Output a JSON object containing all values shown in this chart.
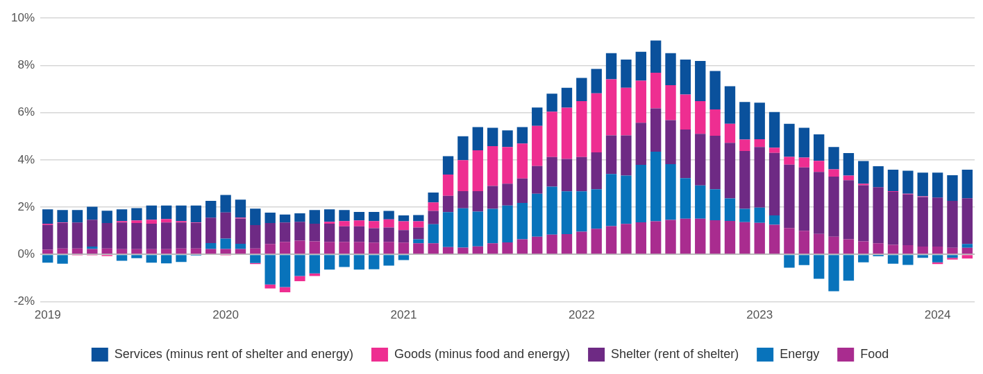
{
  "chart_data": {
    "type": "bar",
    "stacked": true,
    "legend": "bottom",
    "grid": "y",
    "categories": [
      "2019",
      null,
      null,
      null,
      null,
      null,
      null,
      null,
      null,
      null,
      null,
      null,
      "2020",
      null,
      null,
      null,
      null,
      null,
      null,
      null,
      null,
      null,
      null,
      null,
      "2021",
      null,
      null,
      null,
      null,
      null,
      null,
      null,
      null,
      null,
      null,
      null,
      "2022",
      null,
      null,
      null,
      null,
      null,
      null,
      null,
      null,
      null,
      null,
      null,
      "2023",
      null,
      null,
      null,
      null,
      null,
      null,
      null,
      null,
      null,
      null,
      null,
      "2024",
      null,
      null
    ],
    "ylim": [
      -2,
      10
    ],
    "yticks": [
      {
        "value": -2,
        "label": "-2%"
      },
      {
        "value": 0,
        "label": "0%"
      },
      {
        "value": 2,
        "label": "2%"
      },
      {
        "value": 4,
        "label": "4%"
      },
      {
        "value": 6,
        "label": "6%"
      },
      {
        "value": 8,
        "label": "8%"
      },
      {
        "value": 10,
        "label": "10%"
      }
    ],
    "series": [
      {
        "name": "Food",
        "color": "#a92c8f",
        "values": [
          0.2,
          0.25,
          0.25,
          0.23,
          0.25,
          0.22,
          0.22,
          0.22,
          0.22,
          0.25,
          0.25,
          0.23,
          0.23,
          0.23,
          0.25,
          0.44,
          0.53,
          0.58,
          0.55,
          0.53,
          0.53,
          0.53,
          0.5,
          0.53,
          0.5,
          0.47,
          0.47,
          0.31,
          0.29,
          0.34,
          0.47,
          0.51,
          0.64,
          0.75,
          0.84,
          0.86,
          0.96,
          1.09,
          1.2,
          1.29,
          1.36,
          1.4,
          1.46,
          1.51,
          1.51,
          1.45,
          1.42,
          1.37,
          1.34,
          1.26,
          1.12,
          1.0,
          0.87,
          0.75,
          0.64,
          0.55,
          0.47,
          0.41,
          0.39,
          0.33,
          0.33,
          0.28,
          0.28
        ]
      },
      {
        "name": "Energy",
        "color": "#0873bb",
        "values": [
          -0.35,
          -0.39,
          0,
          0.1,
          0,
          -0.27,
          -0.16,
          -0.35,
          -0.38,
          -0.32,
          -0.05,
          0.25,
          0.44,
          0.22,
          -0.36,
          -1.27,
          -1.38,
          -0.91,
          -0.8,
          -0.64,
          -0.53,
          -0.64,
          -0.63,
          -0.47,
          -0.24,
          0.17,
          0.81,
          1.48,
          1.66,
          1.47,
          1.46,
          1.56,
          1.54,
          1.82,
          2.03,
          1.81,
          1.71,
          1.67,
          2.2,
          2.05,
          2.43,
          2.95,
          2.36,
          1.72,
          1.41,
          1.31,
          0.95,
          0.56,
          0.64,
          0.39,
          -0.56,
          -0.45,
          -1.03,
          -1.56,
          -1.11,
          -0.33,
          -0.08,
          -0.39,
          -0.44,
          -0.14,
          -0.33,
          -0.14,
          0.16
        ]
      },
      {
        "name": "Shelter (rent of shelter)",
        "color": "#6e2a84",
        "values": [
          1.05,
          1.08,
          1.1,
          1.14,
          1.08,
          1.13,
          1.11,
          1.08,
          1.13,
          1.1,
          1.08,
          1.08,
          1.11,
          1.07,
          0.99,
          0.89,
          0.82,
          0.8,
          0.75,
          0.77,
          0.66,
          0.66,
          0.61,
          0.61,
          0.53,
          0.5,
          0.56,
          0.69,
          0.73,
          0.87,
          0.97,
          0.92,
          1.03,
          1.17,
          1.25,
          1.37,
          1.45,
          1.56,
          1.64,
          1.7,
          1.78,
          1.83,
          1.86,
          2.06,
          2.18,
          2.26,
          2.35,
          2.45,
          2.57,
          2.65,
          2.68,
          2.68,
          2.62,
          2.54,
          2.5,
          2.38,
          2.38,
          2.24,
          2.15,
          2.1,
          2.08,
          1.99,
          1.94
        ]
      },
      {
        "name": "Goods (minus food and energy)",
        "color": "#ee2e91",
        "values": [
          0.05,
          0.02,
          -0.04,
          -0.04,
          -0.07,
          0.06,
          0.11,
          0.17,
          0.15,
          0.06,
          0.02,
          0,
          -0.04,
          0.04,
          -0.05,
          -0.17,
          -0.22,
          -0.22,
          -0.11,
          0.08,
          0.22,
          0.25,
          0.3,
          0.34,
          0.37,
          0.26,
          0.36,
          0.9,
          1.31,
          1.73,
          1.68,
          1.56,
          1.48,
          1.7,
          1.92,
          2.17,
          2.37,
          2.5,
          2.37,
          2.01,
          1.78,
          1.51,
          1.48,
          1.48,
          1.39,
          1.12,
          0.81,
          0.48,
          0.33,
          0.22,
          0.33,
          0.42,
          0.47,
          0.31,
          0.2,
          0.06,
          0,
          0.03,
          0.03,
          0.03,
          -0.08,
          -0.08,
          -0.17
        ]
      },
      {
        "name": "Services (minus rent of shelter and energy)",
        "color": "#0a519c",
        "values": [
          0.61,
          0.53,
          0.53,
          0.55,
          0.52,
          0.5,
          0.52,
          0.6,
          0.57,
          0.66,
          0.72,
          0.71,
          0.74,
          0.76,
          0.7,
          0.44,
          0.34,
          0.36,
          0.58,
          0.53,
          0.47,
          0.36,
          0.39,
          0.36,
          0.25,
          0.27,
          0.42,
          0.78,
          1.01,
          0.98,
          0.78,
          0.7,
          0.7,
          0.78,
          0.76,
          0.84,
          0.98,
          1.03,
          1.11,
          1.2,
          1.23,
          1.36,
          1.36,
          1.48,
          1.7,
          1.62,
          1.59,
          1.59,
          1.54,
          1.51,
          1.4,
          1.26,
          1.12,
          0.95,
          0.95,
          0.96,
          0.88,
          0.91,
          0.97,
          1.0,
          1.05,
          1.08,
          1.21
        ]
      }
    ]
  }
}
